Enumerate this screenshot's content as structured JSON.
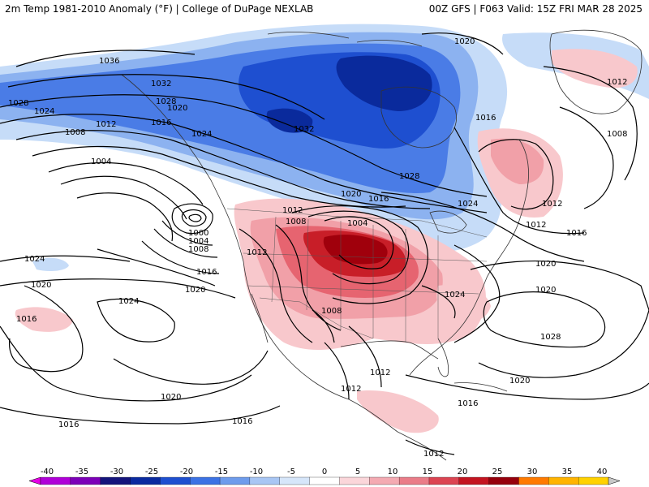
{
  "header": {
    "title_left": "2m Temp 1981-2010 Anomaly (°F) | College of DuPage NEXLAB",
    "title_right": "00Z GFS | F063 Valid: 15Z FRI MAR 28 2025"
  },
  "map": {
    "colors": {
      "cold_deep": "#0a2a9c",
      "cold_strong": "#1e4fd0",
      "cold_mid": "#4a7ce6",
      "cold_light": "#8cb2f0",
      "cold_pale": "#c6dcf8",
      "warm_pale": "#f8c8cc",
      "warm_light": "#f1a0a8",
      "warm_mid": "#e66470",
      "warm_strong": "#c81e28",
      "warm_deep": "#a0000c",
      "coastline": "#333333",
      "isobar": "#000000"
    },
    "isobar_labels": [
      "1036",
      "1032",
      "1028",
      "1024",
      "1028",
      "1020",
      "1008",
      "1012",
      "1016",
      "1004",
      "1024",
      "1032",
      "1028",
      "1020",
      "1016",
      "1020",
      "1024",
      "1020",
      "1016",
      "1012",
      "1008",
      "1004",
      "1012",
      "1000",
      "1004",
      "1008",
      "1012",
      "1016",
      "1024",
      "1020",
      "1016",
      "1024",
      "1020",
      "1008",
      "1024",
      "1012",
      "1012",
      "1016",
      "1020",
      "1028",
      "1020",
      "1012",
      "1016",
      "1020",
      "1016",
      "1016",
      "1012",
      "1012",
      "1008"
    ]
  },
  "legend": {
    "ticks": [
      "-40",
      "-35",
      "-30",
      "-25",
      "-20",
      "-15",
      "-10",
      "-5",
      "0",
      "5",
      "10",
      "15",
      "20",
      "25",
      "30",
      "35",
      "40"
    ],
    "colors": [
      "#e600e6",
      "#b000d8",
      "#7c00b8",
      "#14147c",
      "#0a2aa0",
      "#1e4fd0",
      "#3c72e4",
      "#6e9cec",
      "#a8c6f4",
      "#d6e6fa",
      "#ffffff",
      "#fbd6da",
      "#f4aab2",
      "#ea7c88",
      "#dc4452",
      "#c41420",
      "#96000c",
      "#ff7a00",
      "#ffb400",
      "#ffd200",
      "#c8c8c8"
    ]
  }
}
